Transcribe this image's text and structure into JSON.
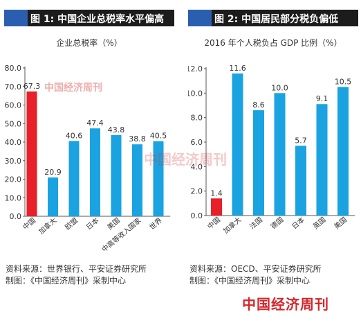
{
  "left": {
    "header": "图 1: 中国企业总税率水平偏高",
    "source": "资料来源：世界银行、平安证券研究所",
    "credit": "制图：《中国经济周刊》采制中心"
  },
  "right": {
    "header": "图 2: 中国居民部分税负偏低",
    "source": "资料来源：OECD、平安证券研究所",
    "credit": "制图：《中国经济周刊》采制中心"
  },
  "watermark": "中国经济周刊",
  "colors": {
    "highlight": "#e8202a",
    "bar": "#1aa3e0",
    "header_accent": "#2a5fb0"
  },
  "chart_data": [
    {
      "type": "bar",
      "title": "企业总税率（%）",
      "categories": [
        "中国",
        "加拿大",
        "欧盟",
        "日本",
        "美国",
        "中高等收入国家",
        "世界"
      ],
      "values": [
        67.3,
        20.9,
        40.6,
        47.4,
        43.8,
        38.8,
        40.5
      ],
      "value_labels": [
        "67.3",
        "20.9",
        "40.6",
        "47.4",
        "43.8",
        "38.8",
        "40.5"
      ],
      "ylim": [
        0,
        80
      ],
      "yticks": [
        "0.0",
        "10.0",
        "20.0",
        "30.0",
        "40.0",
        "50.0",
        "60.0",
        "70.0",
        "80.0"
      ],
      "highlight_index": 0,
      "grid": false
    },
    {
      "type": "bar",
      "title": "2016 年个人税负占 GDP 比例（%）",
      "categories": [
        "中国",
        "加拿大",
        "法国",
        "德国",
        "日本",
        "英国",
        "美国"
      ],
      "values": [
        1.4,
        11.6,
        8.6,
        10.0,
        5.7,
        9.1,
        10.5
      ],
      "value_labels": [
        "1.4",
        "11.6",
        "8.6",
        "10.0",
        "5.7",
        "9.1",
        "10.5"
      ],
      "ylim": [
        0,
        12
      ],
      "yticks": [
        "0.0",
        "2.0",
        "4.0",
        "6.0",
        "8.0",
        "10.0",
        "12.0"
      ],
      "highlight_index": 0,
      "grid": false
    }
  ]
}
